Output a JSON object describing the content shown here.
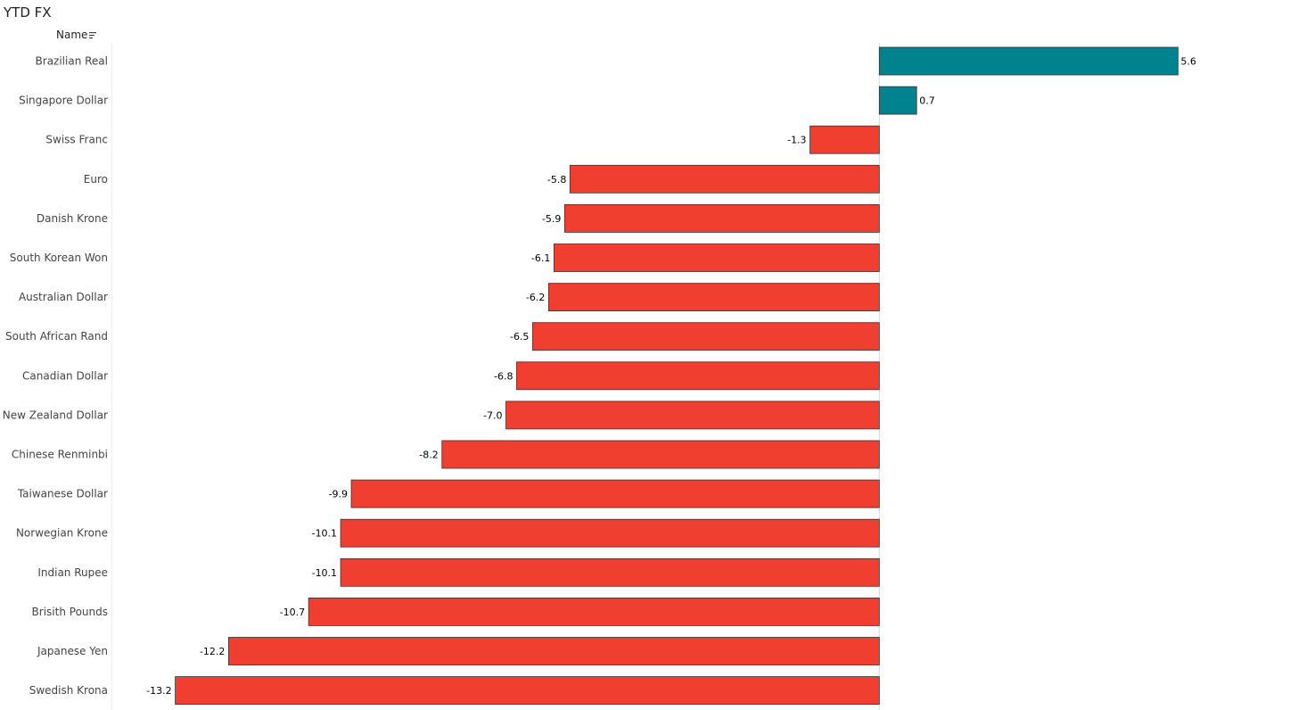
{
  "title": "YTD FX",
  "column_header": {
    "label": "Name",
    "sort_icon": "sort-descending-icon"
  },
  "colors": {
    "positive": "#00838f",
    "negative": "#f03f31",
    "bar_border": "#333333",
    "zero_line": "#d9d9d9"
  },
  "chart_data": {
    "type": "bar",
    "orientation": "horizontal",
    "title": "YTD FX",
    "xlabel": "",
    "ylabel": "Name",
    "xlim": [
      -14.38,
      7.85
    ],
    "grid": false,
    "categories": [
      "Brazilian Real",
      "Singapore Dollar",
      "Swiss Franc",
      "Euro",
      "Danish Krone",
      "South Korean Won",
      "Australian Dollar",
      "South African Rand",
      "Canadian Dollar",
      "New Zealand Dollar",
      "Chinese Renminbi",
      "Taiwanese Dollar",
      "Norwegian Krone",
      "Indian Rupee",
      "Brisith Pounds",
      "Japanese Yen",
      "Swedish Krona"
    ],
    "values": [
      5.6,
      0.7,
      -1.3,
      -5.8,
      -5.9,
      -6.1,
      -6.2,
      -6.5,
      -6.8,
      -7.0,
      -8.2,
      -9.9,
      -10.1,
      -10.1,
      -10.7,
      -12.2,
      -13.2
    ]
  }
}
